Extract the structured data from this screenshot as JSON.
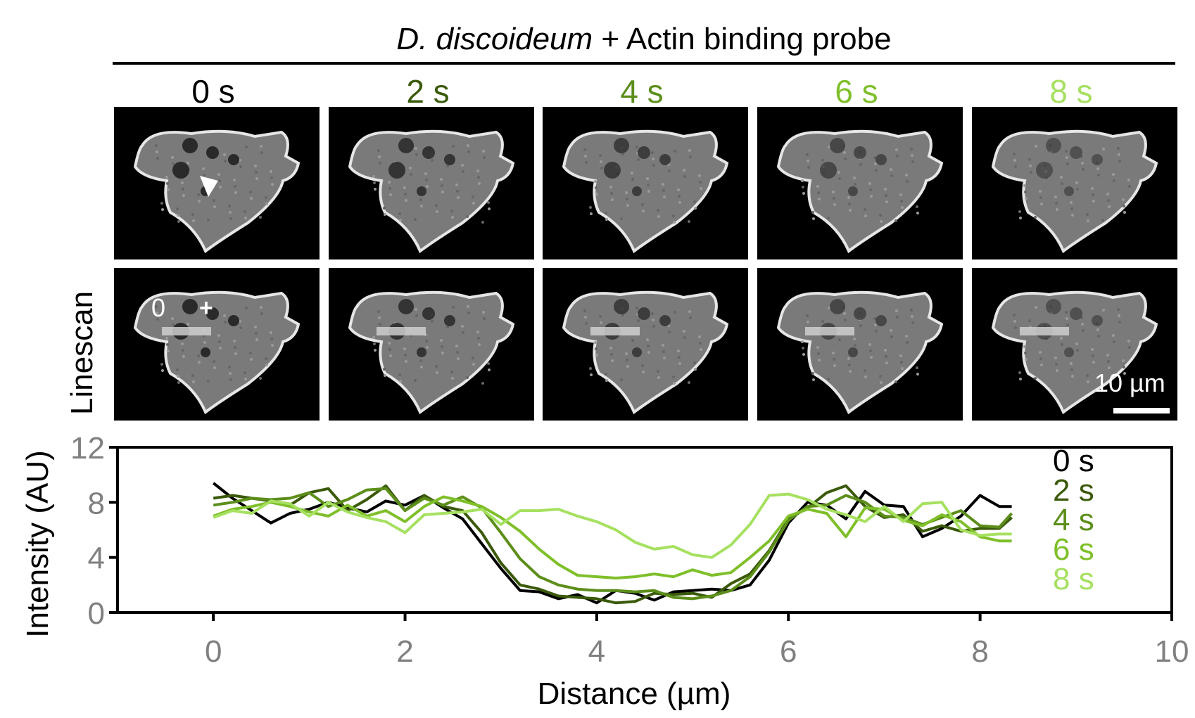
{
  "figure": {
    "title_italic": "D. discoideum",
    "title_rest": " + Actin binding probe",
    "row_label": "Linescan",
    "timepoints": [
      {
        "label": "0 s",
        "color": "#000000"
      },
      {
        "label": "2 s",
        "color": "#3a5a0a"
      },
      {
        "label": "4 s",
        "color": "#5c8e1a"
      },
      {
        "label": "6 s",
        "color": "#7fbf2a"
      },
      {
        "label": "8 s",
        "color": "#a6e060"
      }
    ],
    "linescan_start_label": "0",
    "linescan_end_label": "+",
    "scale_bar_label": "10 µm",
    "scale_bar_length_um": 10
  },
  "chart_data": {
    "type": "line",
    "title": "",
    "xlabel": "Distance (µm)",
    "ylabel": "Intensity (AU)",
    "xlim": [
      -1,
      10
    ],
    "ylim": [
      0,
      12
    ],
    "xticks": [
      0,
      2,
      4,
      6,
      8,
      10
    ],
    "yticks": [
      0,
      4,
      8,
      12
    ],
    "grid": false,
    "legend": "right",
    "x": [
      0,
      0.2,
      0.4,
      0.6,
      0.8,
      1.0,
      1.2,
      1.4,
      1.6,
      1.8,
      2.0,
      2.2,
      2.4,
      2.6,
      2.8,
      3.0,
      3.2,
      3.4,
      3.6,
      3.8,
      4.0,
      4.2,
      4.4,
      4.6,
      4.8,
      5.0,
      5.2,
      5.4,
      5.6,
      5.8,
      6.0,
      6.2,
      6.4,
      6.6,
      6.8,
      7.0,
      7.2,
      7.4,
      7.6,
      7.8,
      8.0,
      8.2,
      8.33
    ],
    "series": [
      {
        "name": "0 s",
        "color": "#000000",
        "values": [
          9.4,
          8.3,
          7.4,
          6.5,
          7.2,
          7.5,
          8.0,
          7.6,
          7.3,
          8.1,
          7.8,
          8.5,
          7.6,
          6.8,
          5.0,
          3.2,
          1.6,
          1.5,
          1.0,
          1.3,
          0.7,
          1.6,
          1.4,
          0.9,
          1.5,
          1.6,
          1.7,
          1.6,
          2.0,
          3.8,
          6.5,
          8.0,
          7.8,
          6.8,
          8.8,
          7.8,
          7.7,
          5.5,
          6.1,
          7.0,
          8.5,
          7.7,
          7.7
        ]
      },
      {
        "name": "2 s",
        "color": "#3a5a0a",
        "values": [
          8.3,
          8.5,
          8.3,
          8.1,
          7.8,
          8.7,
          9.0,
          7.4,
          8.2,
          9.2,
          7.4,
          8.5,
          7.7,
          7.4,
          5.8,
          3.6,
          2.0,
          1.7,
          1.2,
          1.1,
          1.0,
          0.7,
          0.8,
          1.4,
          1.3,
          1.4,
          1.1,
          2.1,
          2.8,
          4.5,
          6.8,
          7.6,
          8.7,
          9.2,
          7.7,
          6.9,
          7.1,
          5.9,
          6.3,
          5.9,
          6.1,
          6.1,
          6.9
        ]
      },
      {
        "name": "4 s",
        "color": "#5c8e1a",
        "values": [
          7.8,
          8.0,
          8.3,
          8.2,
          8.3,
          8.7,
          7.7,
          8.2,
          8.9,
          9.0,
          7.4,
          8.3,
          7.8,
          8.4,
          7.6,
          5.8,
          3.9,
          2.6,
          2.0,
          1.7,
          1.6,
          1.6,
          1.5,
          1.6,
          1.1,
          1.0,
          1.2,
          1.6,
          2.6,
          4.4,
          6.7,
          7.7,
          7.8,
          8.5,
          8.0,
          7.0,
          6.9,
          6.4,
          6.9,
          7.4,
          6.3,
          6.2,
          7.2
        ]
      },
      {
        "name": "6 s",
        "color": "#7fbf2a",
        "values": [
          7.0,
          7.5,
          7.7,
          8.0,
          7.7,
          7.3,
          7.0,
          7.8,
          7.0,
          7.4,
          6.6,
          7.7,
          8.4,
          8.1,
          7.7,
          6.9,
          5.9,
          4.6,
          3.5,
          2.7,
          2.6,
          2.5,
          2.6,
          2.8,
          2.6,
          3.1,
          2.7,
          2.9,
          4.0,
          5.2,
          7.0,
          7.5,
          7.2,
          5.5,
          7.6,
          7.5,
          6.7,
          6.3,
          7.1,
          6.6,
          5.5,
          5.2,
          5.2
        ]
      },
      {
        "name": "8 s",
        "color": "#a6e060",
        "values": [
          6.9,
          7.4,
          7.2,
          8.1,
          7.9,
          7.0,
          8.0,
          7.3,
          6.9,
          6.6,
          5.8,
          7.1,
          7.2,
          7.3,
          7.5,
          6.4,
          7.4,
          7.4,
          7.5,
          7.0,
          6.6,
          6.0,
          5.1,
          4.6,
          4.8,
          4.2,
          4.0,
          4.9,
          6.4,
          8.5,
          8.6,
          8.2,
          7.5,
          7.1,
          6.6,
          7.7,
          6.6,
          7.9,
          8.0,
          6.0,
          5.6,
          5.7,
          5.7
        ]
      }
    ]
  }
}
